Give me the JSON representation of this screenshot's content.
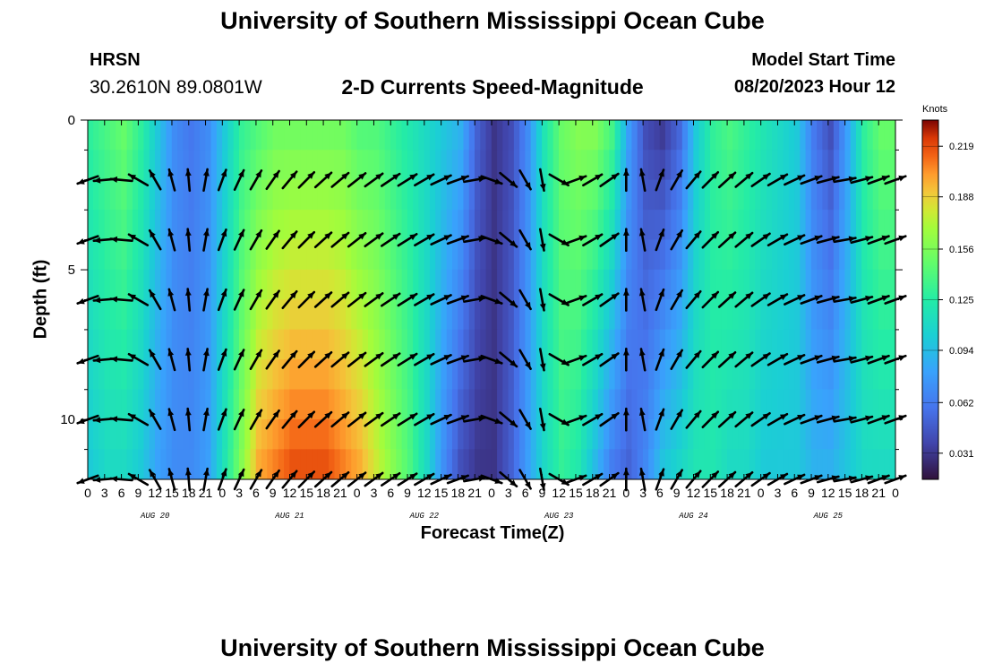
{
  "header": {
    "title": "University of Southern Mississippi Ocean Cube",
    "station": "HRSN",
    "coordinates": "30.2610N  89.0801W",
    "subtitle": "2-D Currents Speed-Magnitude",
    "model_start_label": "Model Start Time",
    "model_start_value": "08/20/2023 Hour 12"
  },
  "footer": {
    "title": "University of Southern Mississippi Ocean Cube"
  },
  "chart_data": {
    "type": "heatmap",
    "title": "2-D Currents Speed-Magnitude",
    "xlabel": "Forecast Time(Z)",
    "ylabel": "Depth (ft)",
    "x_hours": [
      0,
      144
    ],
    "y_range": [
      0,
      12
    ],
    "y_inverted": true,
    "y_ticks": [
      "0",
      "5",
      "10"
    ],
    "x_tick_labels": [
      "0",
      "3",
      "6",
      "9",
      "12",
      "15",
      "18",
      "21",
      "0",
      "3",
      "6",
      "9",
      "12",
      "15",
      "18",
      "21",
      "0",
      "3",
      "6",
      "9",
      "12",
      "15",
      "18",
      "21",
      "0",
      "3",
      "6",
      "9",
      "12",
      "15",
      "18",
      "21",
      "0",
      "3",
      "6",
      "9",
      "12",
      "15",
      "18",
      "21",
      "0",
      "3",
      "6",
      "9",
      "12",
      "15",
      "18",
      "21",
      "0"
    ],
    "date_labels": [
      "AUG 20",
      "AUG 21",
      "AUG 22",
      "AUG 23",
      "AUG 24",
      "AUG 25"
    ],
    "colorbar": {
      "label": "Knots",
      "min": 0.015,
      "max": 0.235,
      "ticks": [
        "0.031",
        "0.062",
        "0.094",
        "0.125",
        "0.156",
        "0.188",
        "0.219"
      ]
    },
    "speed_profile": {
      "hours": [
        0,
        3,
        6,
        9,
        12,
        15,
        18,
        21,
        24,
        27,
        30,
        33,
        36,
        39,
        42,
        45,
        48,
        51,
        54,
        57,
        60,
        63,
        66,
        69,
        72,
        75,
        78,
        81,
        84,
        87,
        90,
        93,
        96,
        99,
        102,
        105,
        108,
        111,
        114,
        117,
        120,
        123,
        126,
        129,
        132,
        135,
        138,
        141,
        144
      ],
      "surface": [
        0.13,
        0.14,
        0.15,
        0.13,
        0.1,
        0.07,
        0.06,
        0.07,
        0.1,
        0.13,
        0.14,
        0.15,
        0.15,
        0.15,
        0.15,
        0.15,
        0.14,
        0.14,
        0.13,
        0.12,
        0.11,
        0.1,
        0.09,
        0.05,
        0.03,
        0.04,
        0.07,
        0.12,
        0.15,
        0.16,
        0.16,
        0.14,
        0.08,
        0.04,
        0.03,
        0.05,
        0.1,
        0.13,
        0.14,
        0.13,
        0.12,
        0.11,
        0.1,
        0.06,
        0.04,
        0.08,
        0.13,
        0.15,
        0.15
      ],
      "bottom": [
        0.1,
        0.11,
        0.11,
        0.1,
        0.08,
        0.07,
        0.07,
        0.08,
        0.12,
        0.16,
        0.2,
        0.21,
        0.22,
        0.22,
        0.22,
        0.21,
        0.2,
        0.18,
        0.16,
        0.14,
        0.11,
        0.07,
        0.04,
        0.03,
        0.03,
        0.05,
        0.08,
        0.11,
        0.13,
        0.12,
        0.09,
        0.06,
        0.05,
        0.07,
        0.1,
        0.11,
        0.12,
        0.12,
        0.11,
        0.11,
        0.1,
        0.1,
        0.1,
        0.09,
        0.09,
        0.1,
        0.11,
        0.11,
        0.11
      ]
    },
    "vector_depths_ft": [
      2,
      4,
      6,
      8,
      10,
      12
    ],
    "vector_hours": [
      0,
      3,
      6,
      9,
      12,
      15,
      18,
      21,
      24,
      27,
      30,
      33,
      36,
      39,
      42,
      45,
      48,
      51,
      54,
      57,
      60,
      63,
      66,
      69,
      72,
      75,
      78,
      81,
      84,
      87,
      90,
      93,
      96,
      99,
      102,
      105,
      108,
      111,
      114,
      117,
      120,
      123,
      126,
      129,
      132,
      135,
      138,
      141,
      144
    ],
    "vector_direction_deg": [
      250,
      265,
      275,
      300,
      330,
      345,
      355,
      10,
      20,
      25,
      30,
      35,
      40,
      45,
      48,
      50,
      52,
      54,
      56,
      58,
      60,
      65,
      70,
      80,
      110,
      130,
      150,
      170,
      120,
      70,
      60,
      55,
      0,
      350,
      20,
      30,
      40,
      45,
      48,
      50,
      55,
      60,
      65,
      70,
      75,
      80,
      75,
      70,
      70
    ]
  }
}
